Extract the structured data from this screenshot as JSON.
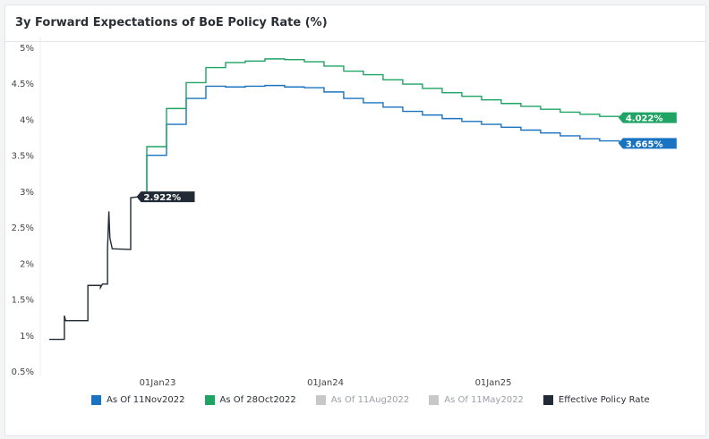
{
  "title": "3y Forward Expectations of BoE Policy Rate (%)",
  "chart_data": {
    "type": "line",
    "title": "3y Forward Expectations of BoE Policy Rate (%)",
    "ylim": [
      0.5,
      5
    ],
    "yticks": [
      {
        "v": 5,
        "label": "5%"
      },
      {
        "v": 4.5,
        "label": "4.5%"
      },
      {
        "v": 4,
        "label": "4%"
      },
      {
        "v": 3.5,
        "label": "3.5%"
      },
      {
        "v": 3,
        "label": "3%"
      },
      {
        "v": 2.5,
        "label": "2.5%"
      },
      {
        "v": 2,
        "label": "2%"
      },
      {
        "v": 1.5,
        "label": "1.5%"
      },
      {
        "v": 1,
        "label": "1%"
      },
      {
        "v": 0.5,
        "label": "0.5%"
      }
    ],
    "xlim": [
      2022.25,
      2025.95
    ],
    "xticks": [
      {
        "v": 2023,
        "label": "01Jan23"
      },
      {
        "v": 2024,
        "label": "01Jan24"
      },
      {
        "v": 2025,
        "label": "01Jan25"
      }
    ],
    "grid": false,
    "legend_position": "bottom",
    "series": [
      {
        "name": "As Of 11Nov2022",
        "color": "#1a73c0",
        "start_x": 2022.936,
        "step": 0.1173,
        "start_value": 2.922,
        "values": [
          3.5,
          3.93,
          4.29,
          4.46,
          4.45,
          4.46,
          4.47,
          4.45,
          4.44,
          4.38,
          4.29,
          4.23,
          4.17,
          4.11,
          4.06,
          4.01,
          3.97,
          3.93,
          3.89,
          3.85,
          3.81,
          3.77,
          3.73,
          3.7
        ],
        "end_value": 3.665,
        "end_label": "3.665%"
      },
      {
        "name": "As Of 28Oct2022",
        "color": "#1fa463",
        "start_x": 2022.936,
        "step": 0.1173,
        "start_value": 3.0,
        "values": [
          3.62,
          4.15,
          4.51,
          4.72,
          4.79,
          4.81,
          4.84,
          4.83,
          4.8,
          4.74,
          4.67,
          4.62,
          4.55,
          4.49,
          4.43,
          4.37,
          4.32,
          4.27,
          4.22,
          4.18,
          4.14,
          4.1,
          4.07,
          4.04
        ],
        "end_value": 4.022,
        "end_label": "4.022%"
      },
      {
        "name": "As Of 11Aug2022",
        "color": "#c8c8c8",
        "hidden": true,
        "values": []
      },
      {
        "name": "As Of 11May2022",
        "color": "#c8c8c8",
        "hidden": true,
        "values": []
      },
      {
        "name": "Effective Policy Rate",
        "color": "#222b35",
        "points": [
          [
            2022.355,
            0.94
          ],
          [
            2022.445,
            0.94
          ],
          [
            2022.445,
            1.27
          ],
          [
            2022.452,
            1.2
          ],
          [
            2022.585,
            1.2
          ],
          [
            2022.585,
            1.69
          ],
          [
            2022.66,
            1.69
          ],
          [
            2022.66,
            1.66
          ],
          [
            2022.672,
            1.71
          ],
          [
            2022.702,
            1.71
          ],
          [
            2022.702,
            2.2
          ],
          [
            2022.71,
            2.72
          ],
          [
            2022.716,
            2.35
          ],
          [
            2022.73,
            2.2
          ],
          [
            2022.84,
            2.19
          ],
          [
            2022.84,
            2.91
          ],
          [
            2022.88,
            2.922
          ]
        ],
        "end_label": "2.922%"
      }
    ]
  }
}
